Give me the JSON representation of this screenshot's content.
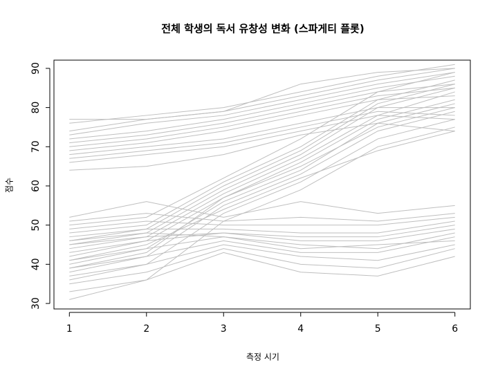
{
  "chart_data": {
    "type": "line",
    "title": "전체 학생의 독서 유창성 변화 (스파게티 플롯)",
    "x_label": "측정 시기",
    "y_label": "점수",
    "x": [
      1,
      2,
      3,
      4,
      5,
      6
    ],
    "xlim": [
      0.8,
      6.2
    ],
    "xticks": [
      1,
      2,
      3,
      4,
      5,
      6
    ],
    "ylim": [
      28.6,
      92.1
    ],
    "yticks": [
      30,
      40,
      50,
      60,
      70,
      80,
      90
    ],
    "color": "#bebebe",
    "series": [
      {
        "values": [
          64,
          65,
          68,
          73,
          76,
          74
        ]
      },
      {
        "values": [
          66,
          68,
          70,
          74,
          78,
          77
        ]
      },
      {
        "values": [
          68,
          70,
          72,
          76,
          80,
          80
        ]
      },
      {
        "values": [
          69,
          71,
          74,
          78,
          82,
          83
        ]
      },
      {
        "values": [
          70,
          72,
          75,
          79,
          83,
          85
        ]
      },
      {
        "values": [
          71,
          73,
          76,
          80,
          84,
          86
        ]
      },
      {
        "values": [
          72,
          74,
          77,
          81,
          85,
          88
        ]
      },
      {
        "values": [
          73,
          76,
          78,
          82,
          86,
          89
        ]
      },
      {
        "values": [
          74,
          77,
          79,
          83,
          87,
          90
        ]
      },
      {
        "values": [
          76,
          78,
          80,
          84,
          88,
          91
        ]
      },
      {
        "values": [
          77,
          77,
          79,
          86,
          89,
          90
        ]
      },
      {
        "values": [
          67,
          69,
          71,
          75,
          79,
          78
        ]
      },
      {
        "values": [
          33,
          36,
          51,
          59,
          70,
          75
        ]
      },
      {
        "values": [
          36,
          40,
          53,
          61,
          72,
          77
        ]
      },
      {
        "values": [
          38,
          42,
          55,
          63,
          74,
          79
        ]
      },
      {
        "values": [
          40,
          44,
          56,
          64,
          76,
          81
        ]
      },
      {
        "values": [
          42,
          46,
          57,
          66,
          77,
          82
        ]
      },
      {
        "values": [
          44,
          47,
          58,
          67,
          78,
          84
        ]
      },
      {
        "values": [
          45,
          48,
          59,
          68,
          80,
          85
        ]
      },
      {
        "values": [
          46,
          49,
          60,
          69,
          81,
          86
        ]
      },
      {
        "values": [
          48,
          50,
          61,
          70,
          82,
          87
        ]
      },
      {
        "values": [
          50,
          52,
          62,
          72,
          84,
          89
        ]
      },
      {
        "values": [
          41,
          45,
          54,
          62,
          69,
          74
        ]
      },
      {
        "values": [
          39,
          43,
          57,
          65,
          75,
          80
        ]
      },
      {
        "values": [
          31,
          36,
          43,
          38,
          37,
          42
        ]
      },
      {
        "values": [
          35,
          38,
          44,
          40,
          39,
          44
        ]
      },
      {
        "values": [
          37,
          40,
          45,
          42,
          41,
          45
        ]
      },
      {
        "values": [
          39,
          42,
          46,
          43,
          43,
          47
        ]
      },
      {
        "values": [
          41,
          44,
          47,
          45,
          44,
          48
        ]
      },
      {
        "values": [
          43,
          46,
          48,
          46,
          46,
          49
        ]
      },
      {
        "values": [
          45,
          47,
          48,
          47,
          47,
          50
        ]
      },
      {
        "values": [
          47,
          49,
          49,
          48,
          48,
          51
        ]
      },
      {
        "values": [
          49,
          51,
          50,
          50,
          50,
          52
        ]
      },
      {
        "values": [
          51,
          53,
          51,
          52,
          51,
          53
        ]
      },
      {
        "values": [
          52,
          56,
          52,
          56,
          53,
          55
        ]
      },
      {
        "values": [
          46,
          48,
          47,
          44,
          45,
          46
        ]
      }
    ]
  }
}
